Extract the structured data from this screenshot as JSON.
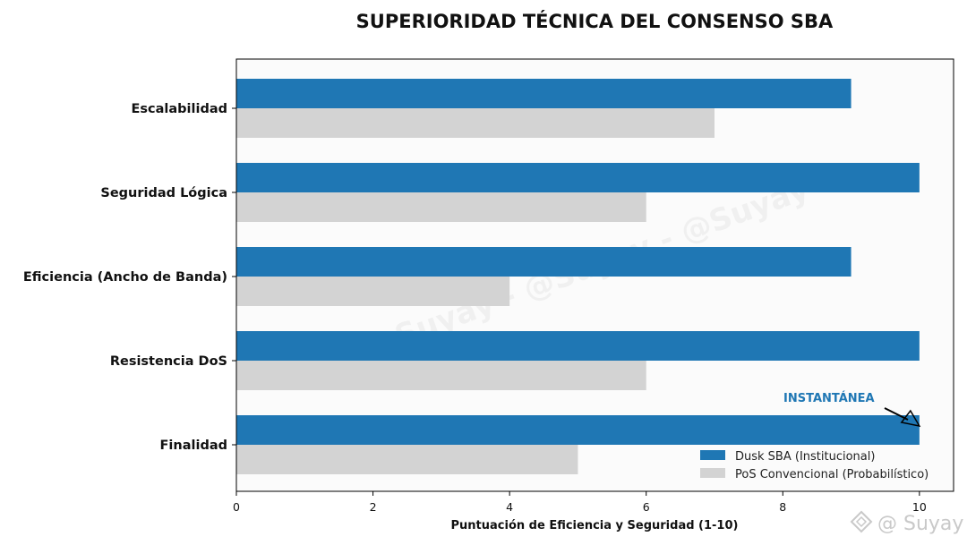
{
  "chart_data": {
    "type": "bar",
    "orientation": "horizontal",
    "title": "SUPERIORIDAD TÉCNICA DEL CONSENSO SBA",
    "xlabel": "Puntuación de Eficiencia y Seguridad (1-10)",
    "ylabel": "",
    "xlim": [
      0,
      10.5
    ],
    "xticks": [
      0,
      2,
      4,
      6,
      8,
      10
    ],
    "categories": [
      "Escalabilidad",
      "Seguridad Lógica",
      "Eficiencia (Ancho de Banda)",
      "Resistencia DoS",
      "Finalidad"
    ],
    "series": [
      {
        "name": "Dusk SBA (Institucional)",
        "values": [
          9,
          10,
          9,
          10,
          10
        ],
        "color": "#1f77b4"
      },
      {
        "name": "PoS Convencional (Probabilístico)",
        "values": [
          7,
          6,
          4,
          6,
          5
        ],
        "color": "#d3d3d3"
      }
    ],
    "legend_position": "lower-right",
    "grid": false,
    "background": "#fbfbfb",
    "annotation": {
      "text": "INSTANTÁNEA",
      "category": "Finalidad",
      "x": 10,
      "color": "#1f77b4"
    }
  },
  "watermark": "@Suyay - @Suyay - @Suyay",
  "corner_watermark": "@ Suyay"
}
